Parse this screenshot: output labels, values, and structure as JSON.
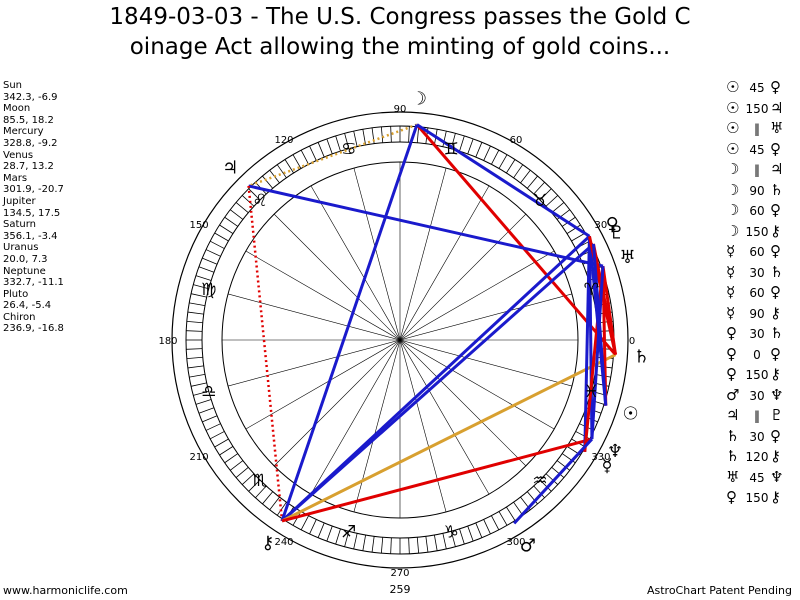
{
  "title": {
    "line1": "1849-03-03 - The U.S. Congress passes the Gold C",
    "line2": "oinage Act allowing the minting of gold coins..."
  },
  "planets": [
    {
      "name": "Sun",
      "coords": "342.3, -6.9",
      "lon": 342.3,
      "glyph": "☉"
    },
    {
      "name": "Moon",
      "coords": "85.5, 18.2",
      "lon": 85.5,
      "glyph": "☽"
    },
    {
      "name": "Mercury",
      "coords": "328.8, -9.2",
      "lon": 328.8,
      "glyph": "☿"
    },
    {
      "name": "Venus",
      "coords": "28.7, 13.2",
      "lon": 28.7,
      "glyph": "♀"
    },
    {
      "name": "Mars",
      "coords": "301.9, -20.7",
      "lon": 301.9,
      "glyph": "♂"
    },
    {
      "name": "Jupiter",
      "coords": "134.5, 17.5",
      "lon": 134.5,
      "glyph": "♃"
    },
    {
      "name": "Saturn",
      "coords": "356.1, -3.4",
      "lon": 356.1,
      "glyph": "♄"
    },
    {
      "name": "Uranus",
      "coords": "20.0, 7.3",
      "lon": 20.0,
      "glyph": "♅"
    },
    {
      "name": "Neptune",
      "coords": "332.7, -11.1",
      "lon": 332.7,
      "glyph": "♆"
    },
    {
      "name": "Pluto",
      "coords": "26.4, -5.4",
      "lon": 26.4,
      "glyph": "♇"
    },
    {
      "name": "Chiron",
      "coords": "236.9, -16.8",
      "lon": 236.9,
      "glyph": "⚷"
    }
  ],
  "aspects": [
    {
      "p1": "☉",
      "a": "45",
      "p2": "♀"
    },
    {
      "p1": "☉",
      "a": "150",
      "p2": "♃"
    },
    {
      "p1": "☉",
      "a": "‖",
      "p2": "♅"
    },
    {
      "p1": "☉",
      "a": "45",
      "p2": "♀"
    },
    {
      "p1": "☽",
      "a": "‖",
      "p2": "♃"
    },
    {
      "p1": "☽",
      "a": "90",
      "p2": "♄"
    },
    {
      "p1": "☽",
      "a": "60",
      "p2": "♀"
    },
    {
      "p1": "☽",
      "a": "150",
      "p2": "⚷"
    },
    {
      "p1": "☿",
      "a": "60",
      "p2": "♀"
    },
    {
      "p1": "☿",
      "a": "30",
      "p2": "♄"
    },
    {
      "p1": "☿",
      "a": "60",
      "p2": "♀"
    },
    {
      "p1": "☿",
      "a": "90",
      "p2": "⚷"
    },
    {
      "p1": "♀",
      "a": "30",
      "p2": "♄"
    },
    {
      "p1": "♀",
      "a": "0",
      "p2": "♀"
    },
    {
      "p1": "♀",
      "a": "150",
      "p2": "⚷"
    },
    {
      "p1": "♂",
      "a": "30",
      "p2": "♆"
    },
    {
      "p1": "♃",
      "a": "‖",
      "p2": "♇"
    },
    {
      "p1": "♄",
      "a": "30",
      "p2": "♀"
    },
    {
      "p1": "♄",
      "a": "120",
      "p2": "⚷"
    },
    {
      "p1": "♅",
      "a": "45",
      "p2": "♆"
    },
    {
      "p1": "♀",
      "a": "150",
      "p2": "⚷"
    }
  ],
  "wheel": {
    "degree_labels": [
      {
        "deg": 0,
        "text": "0"
      },
      {
        "deg": 30,
        "text": "30"
      },
      {
        "deg": 60,
        "text": "60"
      },
      {
        "deg": 90,
        "text": "90"
      },
      {
        "deg": 120,
        "text": "120"
      },
      {
        "deg": 150,
        "text": "150"
      },
      {
        "deg": 180,
        "text": "180"
      },
      {
        "deg": 210,
        "text": "210"
      },
      {
        "deg": 240,
        "text": "240"
      },
      {
        "deg": 270,
        "text": "270"
      },
      {
        "deg": 300,
        "text": "300"
      },
      {
        "deg": 330,
        "text": "330"
      }
    ],
    "bottom_value": "259",
    "signs": [
      "♈",
      "♉",
      "♊",
      "♋",
      "♌",
      "♍",
      "♎",
      "♏",
      "♐",
      "♑",
      "♒",
      "♓"
    ],
    "aspect_lines": [
      {
        "from": 85.5,
        "to": 356.1,
        "color": "#e00000",
        "style": "solid"
      },
      {
        "from": 85.5,
        "to": 28.7,
        "color": "#1a1acc",
        "style": "solid"
      },
      {
        "from": 85.5,
        "to": 134.5,
        "color": "#d8a030",
        "style": "dotted"
      },
      {
        "from": 134.5,
        "to": 20.0,
        "color": "#1a1acc",
        "style": "solid"
      },
      {
        "from": 134.5,
        "to": 236.9,
        "color": "#e00000",
        "style": "dotted"
      },
      {
        "from": 236.9,
        "to": 85.5,
        "color": "#1a1acc",
        "style": "solid"
      },
      {
        "from": 236.9,
        "to": 28.7,
        "color": "#1a1acc",
        "style": "solid"
      },
      {
        "from": 236.9,
        "to": 26.4,
        "color": "#1a1acc",
        "style": "solid"
      },
      {
        "from": 236.9,
        "to": 356.1,
        "color": "#d8a030",
        "style": "solid"
      },
      {
        "from": 236.9,
        "to": 332.7,
        "color": "#e00000",
        "style": "solid"
      },
      {
        "from": 332.7,
        "to": 28.7,
        "color": "#1a1acc",
        "style": "solid"
      },
      {
        "from": 328.8,
        "to": 28.7,
        "color": "#1a1acc",
        "style": "solid"
      },
      {
        "from": 328.8,
        "to": 20.0,
        "color": "#e00000",
        "style": "solid"
      },
      {
        "from": 342.3,
        "to": 28.7,
        "color": "#1a1acc",
        "style": "solid"
      },
      {
        "from": 342.3,
        "to": 20.0,
        "color": "#e00000",
        "style": "solid"
      },
      {
        "from": 356.1,
        "to": 28.7,
        "color": "#e00000",
        "style": "solid"
      },
      {
        "from": 356.1,
        "to": 20.0,
        "color": "#e00000",
        "style": "solid"
      },
      {
        "from": 356.1,
        "to": 26.4,
        "color": "#e00000",
        "style": "solid"
      },
      {
        "from": 301.9,
        "to": 332.7,
        "color": "#1a1acc",
        "style": "solid"
      },
      {
        "from": 20.0,
        "to": 332.7,
        "color": "#1a1acc",
        "style": "solid"
      },
      {
        "from": 26.4,
        "to": 342.3,
        "color": "#1a1acc",
        "style": "solid"
      }
    ]
  },
  "footer": {
    "left": "www.harmoniclife.com",
    "right": "AstroChart Patent Pending"
  }
}
